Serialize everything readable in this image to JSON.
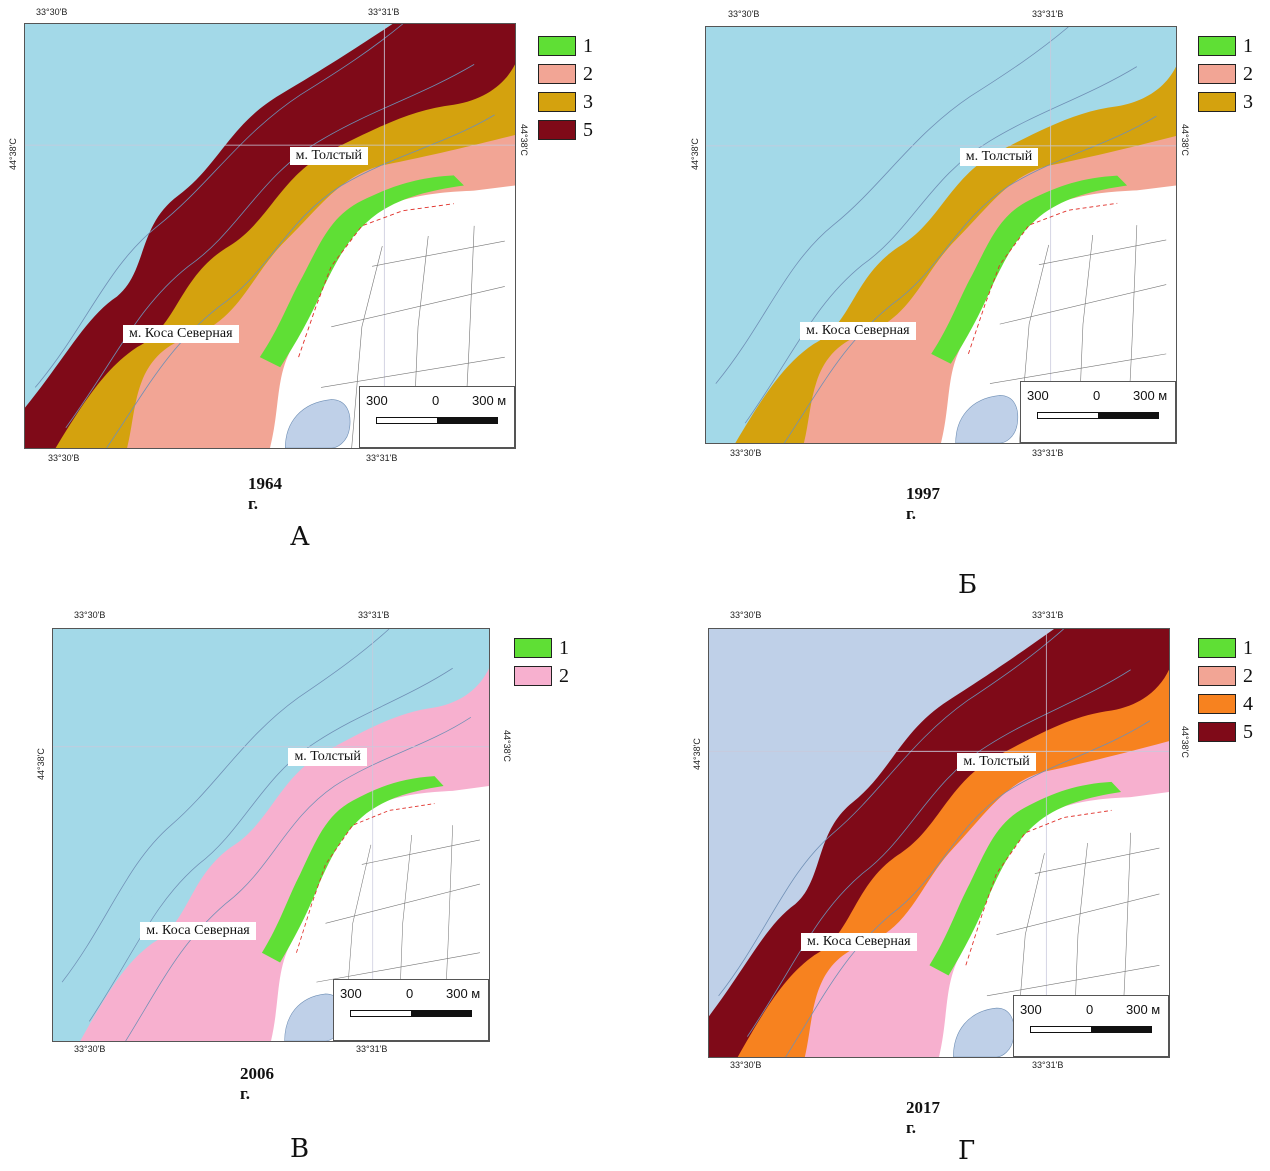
{
  "panels": [
    {
      "letter": "А",
      "year": "1964 г.",
      "coords": {
        "top_left": "33°30'В",
        "top_right": "33°31'В",
        "bottom_left": "33°30'В",
        "bottom_right": "33°31'В",
        "left": "44°38'С",
        "right": "44°38'С"
      },
      "places": {
        "tolstiy": "м. Толстый",
        "kosa": "м. Коса Северная"
      },
      "scale": {
        "left": "300",
        "mid": "0",
        "right": "300 м"
      },
      "legend": [
        {
          "label": "1",
          "color": "#5fdf35"
        },
        {
          "label": "2",
          "color": "#f2a595"
        },
        {
          "label": "3",
          "color": "#d4a20e"
        },
        {
          "label": "5",
          "color": "#7f0a18"
        }
      ],
      "zones": {
        "sea": "#a3d9e8",
        "outer": "#7f0a18",
        "mid": "#d4a20e",
        "inner": "#f2a595",
        "shore": "#5fdf35"
      }
    },
    {
      "letter": "Б",
      "year": "1997 г.",
      "coords": {
        "top_left": "33°30'В",
        "top_right": "33°31'В",
        "bottom_left": "33°30'В",
        "bottom_right": "33°31'В",
        "left": "44°38'С",
        "right": "44°38'С"
      },
      "places": {
        "tolstiy": "м. Толстый",
        "kosa": "м. Коса Северная"
      },
      "scale": {
        "left": "300",
        "mid": "0",
        "right": "300 м"
      },
      "legend": [
        {
          "label": "1",
          "color": "#5fdf35"
        },
        {
          "label": "2",
          "color": "#f2a595"
        },
        {
          "label": "3",
          "color": "#d4a20e"
        }
      ],
      "zones": {
        "sea": "#a3d9e8",
        "outer": "#a3d9e8",
        "mid": "#d4a20e",
        "inner": "#f2a595",
        "shore": "#5fdf35"
      }
    },
    {
      "letter": "В",
      "year": "2006 г.",
      "coords": {
        "top_left": "33°30'В",
        "top_right": "33°31'В",
        "bottom_left": "33°30'В",
        "bottom_right": "33°31'В",
        "left": "44°38'С",
        "right": "44°38'С"
      },
      "places": {
        "tolstiy": "м. Толстый",
        "kosa": "м. Коса Северная"
      },
      "scale": {
        "left": "300",
        "mid": "0",
        "right": "300 м"
      },
      "legend": [
        {
          "label": "1",
          "color": "#5fdf35"
        },
        {
          "label": "2",
          "color": "#f7b0cf"
        }
      ],
      "zones": {
        "sea": "#a3d9e8",
        "outer": "#a3d9e8",
        "mid": "#f7b0cf",
        "inner": "#f7b0cf",
        "shore": "#5fdf35"
      }
    },
    {
      "letter": "Г",
      "year": "2017 г.",
      "coords": {
        "top_left": "33°30'В",
        "top_right": "33°31'В",
        "bottom_left": "33°30'В",
        "bottom_right": "33°31'В",
        "left": "44°38'С",
        "right": "44°38'С"
      },
      "places": {
        "tolstiy": "м. Толстый",
        "kosa": "м. Коса Северная"
      },
      "scale": {
        "left": "300",
        "mid": "0",
        "right": "300 м"
      },
      "legend": [
        {
          "label": "1",
          "color": "#5fdf35"
        },
        {
          "label": "2",
          "color": "#f2a595"
        },
        {
          "label": "4",
          "color": "#f7821f"
        },
        {
          "label": "5",
          "color": "#7f0a18"
        }
      ],
      "zones": {
        "sea": "#bfd0e8",
        "outer": "#7f0a18",
        "mid": "#f7821f",
        "inner": "#f7b0cf",
        "shore": "#5fdf35"
      }
    }
  ]
}
